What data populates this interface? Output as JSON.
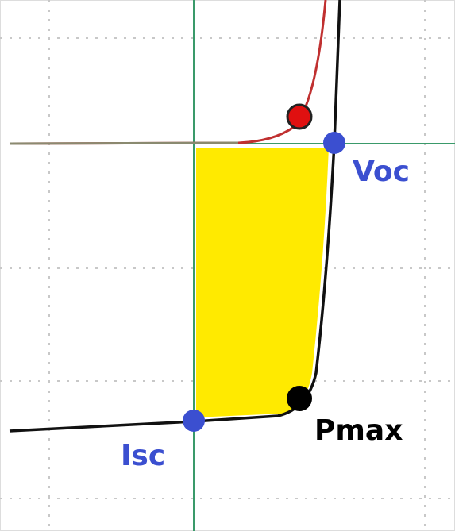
{
  "labels": {
    "voc": "Voc",
    "isc": "Isc",
    "pmax": "Pmax"
  }
}
